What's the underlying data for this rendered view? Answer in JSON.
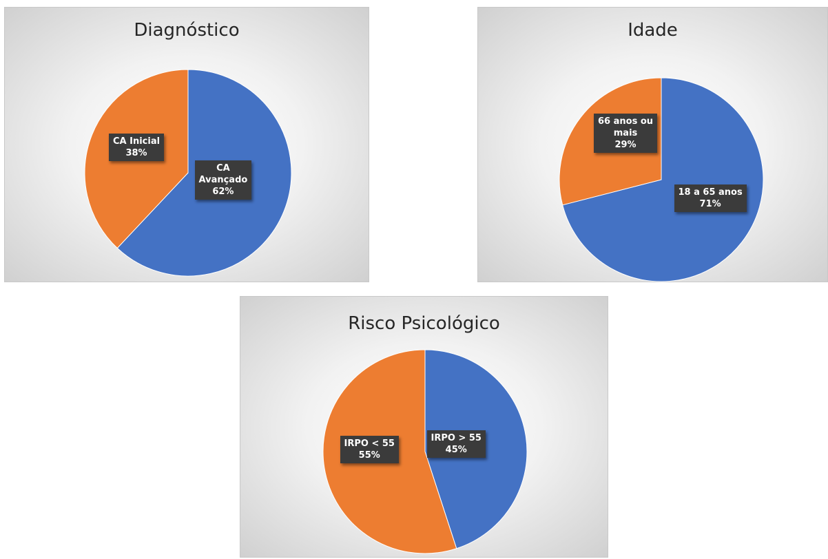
{
  "chart_data": [
    {
      "type": "pie",
      "title": "Diagnóstico",
      "slices": [
        {
          "label": "CA Avançado",
          "label_lines": [
            "CA",
            "Avançado"
          ],
          "percent_text": "62%",
          "value": 62,
          "color": "#4472C4"
        },
        {
          "label": "CA Inicial",
          "label_lines": [
            "CA Inicial"
          ],
          "percent_text": "38%",
          "value": 38,
          "color": "#ED7D31"
        }
      ]
    },
    {
      "type": "pie",
      "title": "Idade",
      "slices": [
        {
          "label": "18 a 65 anos",
          "label_lines": [
            "18 a 65 anos"
          ],
          "percent_text": "71%",
          "value": 71,
          "color": "#4472C4"
        },
        {
          "label": "66 anos ou mais",
          "label_lines": [
            "66 anos ou",
            "mais"
          ],
          "percent_text": "29%",
          "value": 29,
          "color": "#ED7D31"
        }
      ]
    },
    {
      "type": "pie",
      "title": "Risco Psicológico",
      "slices": [
        {
          "label": "IRPO > 55",
          "label_lines": [
            "IRPO > 55"
          ],
          "percent_text": "45%",
          "value": 45,
          "color": "#4472C4"
        },
        {
          "label": "IRPO < 55",
          "label_lines": [
            "IRPO <  55"
          ],
          "percent_text": "55%",
          "value": 55,
          "color": "#ED7D31"
        }
      ]
    }
  ]
}
